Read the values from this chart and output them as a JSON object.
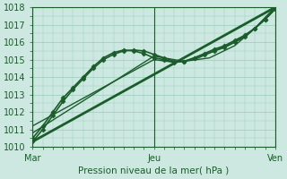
{
  "background_color": "#cce8e0",
  "plot_bg_color": "#cce8e0",
  "grid_color": "#99ccbb",
  "line_color": "#1a5c2a",
  "marker_color": "#1a5c2a",
  "xlabel": "Pression niveau de la mer( hPa )",
  "xtick_labels": [
    "Mar",
    "Jeu",
    "Ven"
  ],
  "xtick_positions": [
    0,
    48,
    96
  ],
  "ylim": [
    1010,
    1018
  ],
  "yticks": [
    1010,
    1011,
    1012,
    1013,
    1014,
    1015,
    1016,
    1017,
    1018
  ],
  "series": [
    {
      "x": [
        0,
        4,
        8,
        12,
        16,
        20,
        24,
        28,
        32,
        36,
        40,
        44,
        48,
        52,
        56,
        60,
        64,
        68,
        72,
        76,
        80,
        84,
        88,
        92,
        96
      ],
      "y": [
        1010.3,
        1011.0,
        1011.8,
        1012.6,
        1013.3,
        1013.9,
        1014.5,
        1015.0,
        1015.3,
        1015.5,
        1015.55,
        1015.5,
        1015.3,
        1015.1,
        1014.9,
        1014.9,
        1015.1,
        1015.3,
        1015.5,
        1015.7,
        1016.0,
        1016.3,
        1016.8,
        1017.3,
        1017.9
      ],
      "lw": 1.2,
      "marker": "D",
      "ms": 2.5
    },
    {
      "x": [
        0,
        4,
        8,
        12,
        16,
        20,
        24,
        28,
        32,
        36,
        40,
        44,
        48,
        52,
        56,
        60,
        64,
        68,
        72,
        76,
        80,
        84,
        88,
        92,
        96
      ],
      "y": [
        1010.5,
        1011.2,
        1012.0,
        1012.8,
        1013.4,
        1014.0,
        1014.6,
        1015.1,
        1015.4,
        1015.55,
        1015.5,
        1015.35,
        1015.1,
        1015.0,
        1014.85,
        1014.9,
        1015.1,
        1015.35,
        1015.6,
        1015.8,
        1016.1,
        1016.4,
        1016.8,
        1017.3,
        1017.9
      ],
      "lw": 1.2,
      "marker": "D",
      "ms": 2.5
    },
    {
      "x": [
        0,
        96
      ],
      "y": [
        1010.3,
        1018.0
      ],
      "lw": 2.0,
      "marker": null,
      "ms": 0
    },
    {
      "x": [
        0,
        48,
        60,
        70,
        80,
        88,
        96
      ],
      "y": [
        1010.8,
        1015.2,
        1014.9,
        1015.1,
        1015.8,
        1016.8,
        1018.0
      ],
      "lw": 1.0,
      "marker": null,
      "ms": 0
    },
    {
      "x": [
        0,
        48,
        56,
        64,
        72,
        80,
        88,
        96
      ],
      "y": [
        1011.2,
        1015.0,
        1014.85,
        1015.0,
        1015.5,
        1016.0,
        1016.8,
        1018.0
      ],
      "lw": 1.0,
      "marker": null,
      "ms": 0
    }
  ]
}
